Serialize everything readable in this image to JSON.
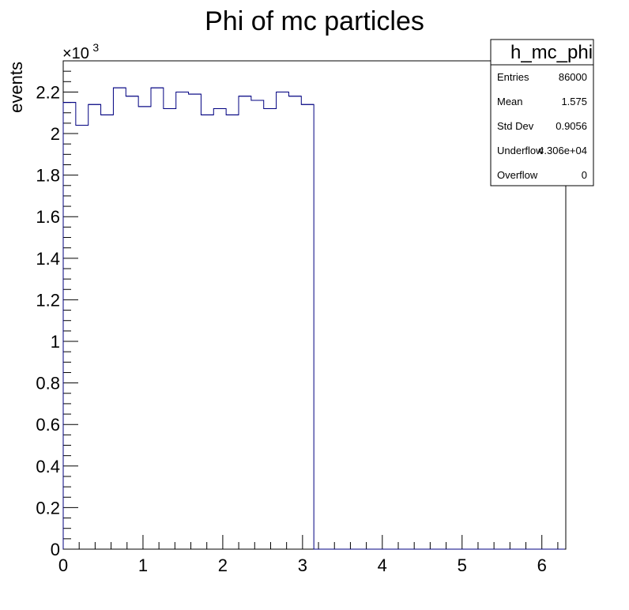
{
  "chart_data": {
    "type": "bar",
    "title": "Phi of mc particles",
    "xlabel": "",
    "ylabel": "events",
    "y_multiplier": "×10",
    "y_multiplier_exp": "3",
    "xlim": [
      0,
      6.3
    ],
    "ylim": [
      0,
      2.35
    ],
    "bin_edges": [
      0,
      0.1571,
      0.3142,
      0.4712,
      0.6283,
      0.7854,
      0.9425,
      1.0996,
      1.2566,
      1.4137,
      1.5708,
      1.7279,
      1.885,
      2.042,
      2.1991,
      2.3562,
      2.5133,
      2.6704,
      2.8274,
      2.9845,
      3.1416,
      3.2987,
      3.4558,
      3.6128,
      3.7699,
      3.927,
      4.0841,
      4.2412,
      4.3982,
      4.5553,
      4.7124,
      4.8695,
      5.0265,
      5.1836,
      5.3407,
      5.4978,
      5.6549,
      5.8119,
      5.969,
      6.1261,
      6.2832
    ],
    "values": [
      2.15,
      2.04,
      2.14,
      2.09,
      2.22,
      2.18,
      2.13,
      2.22,
      2.12,
      2.2,
      2.19,
      2.09,
      2.12,
      2.09,
      2.18,
      2.16,
      2.12,
      2.2,
      2.18,
      2.14,
      0,
      0,
      0,
      0,
      0,
      0,
      0,
      0,
      0,
      0,
      0,
      0,
      0,
      0,
      0,
      0,
      0,
      0,
      0,
      0
    ],
    "line_color": "#000080",
    "x_ticks": [
      "0",
      "1",
      "2",
      "3",
      "4",
      "5",
      "6"
    ],
    "y_ticks": [
      "0",
      "0.2",
      "0.4",
      "0.6",
      "0.8",
      "1",
      "1.2",
      "1.4",
      "1.6",
      "1.8",
      "2",
      "2.2"
    ],
    "stats": {
      "title": "h_mc_phi",
      "rows": [
        {
          "label": "Entries",
          "value": "86000"
        },
        {
          "label": "Mean",
          "value": "1.575"
        },
        {
          "label": "Std Dev",
          "value": "0.9056"
        },
        {
          "label": "Underflow",
          "value": "4.306e+04"
        },
        {
          "label": "Overflow",
          "value": "0"
        }
      ]
    }
  }
}
